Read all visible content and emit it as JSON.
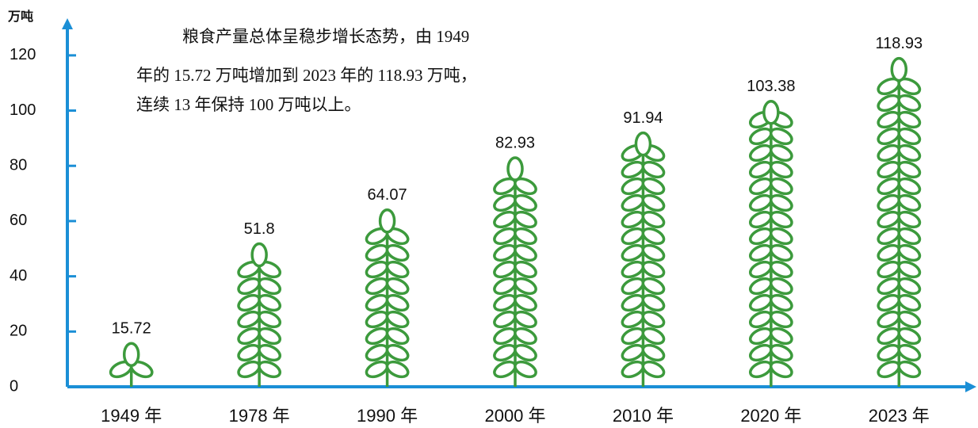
{
  "chart_data": {
    "type": "pictograph",
    "unit_label": "万吨",
    "annotation": [
      "粮食产量总体呈稳步增长态势，由 1949",
      "年的 15.72 万吨增加到 2023 年的 118.93 万吨，",
      "连续 13 年保持 100 万吨以上。"
    ],
    "categories": [
      "1949 年",
      "1978 年",
      "1990 年",
      "2000 年",
      "2010 年",
      "2020 年",
      "2023 年"
    ],
    "values": [
      15.72,
      51.8,
      64.07,
      82.93,
      91.94,
      103.38,
      118.93
    ],
    "color": "#3c9a3c",
    "axis_color": "#1b8fd6",
    "ylim": [
      0,
      130
    ],
    "yticks": [
      0,
      20,
      40,
      60,
      80,
      100,
      120
    ]
  }
}
